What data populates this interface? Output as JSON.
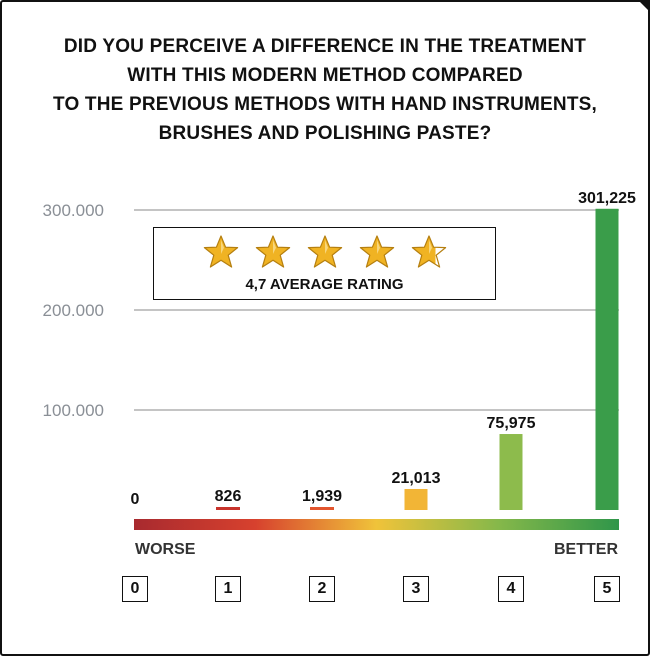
{
  "title_lines": [
    "DID YOU PERCEIVE A DIFFERENCE IN THE TREATMENT",
    "WITH THIS MODERN METHOD COMPARED",
    "TO THE PREVIOUS METHODS WITH HAND INSTRUMENTS,",
    "BRUSHES AND POLISHING PASTE?"
  ],
  "rating": {
    "label": "4,7 AVERAGE RATING",
    "value": 4.7,
    "max": 5,
    "star_color": "#f0b323"
  },
  "scale": {
    "left_label": "WORSE",
    "right_label": "BETTER"
  },
  "chart_data": {
    "type": "bar",
    "categories": [
      "0",
      "1",
      "2",
      "3",
      "4",
      "5"
    ],
    "values": [
      0,
      826,
      1939,
      21013,
      75975,
      301225
    ],
    "data_labels": [
      "0",
      "826",
      "1,939",
      "21,013",
      "75,975",
      "301,225"
    ],
    "y_ticks": [
      100000,
      200000,
      300000
    ],
    "y_tick_labels": [
      "100.000",
      "200.000",
      "300.000"
    ],
    "ylim": [
      0,
      300000
    ],
    "grid": true,
    "bar_colors": [
      "#b8282f",
      "#c8342c",
      "#e2552e",
      "#f2b536",
      "#8dbb4c",
      "#3a9d4a"
    ],
    "gradient_colors": [
      "#a82a2f",
      "#d7412e",
      "#f0c33a",
      "#86b84a",
      "#2f964a"
    ]
  }
}
